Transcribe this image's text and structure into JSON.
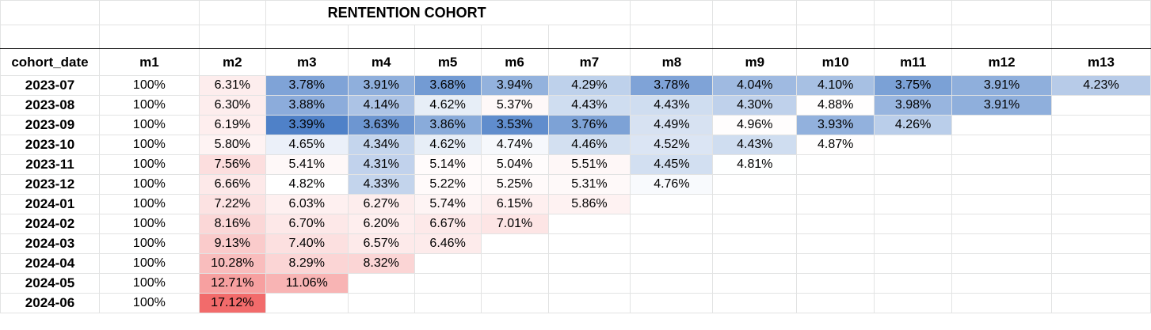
{
  "title": "RENTENTION COHORT",
  "header": {
    "row_label": "cohort_date",
    "columns": [
      "m1",
      "m2",
      "m3",
      "m4",
      "m5",
      "m6",
      "m7",
      "m8",
      "m9",
      "m10",
      "m11",
      "m12",
      "m13"
    ]
  },
  "rows": [
    {
      "date": "2023-07",
      "values": [
        "100%",
        "6.31%",
        "3.78%",
        "3.91%",
        "3.68%",
        "3.94%",
        "4.29%",
        "3.78%",
        "4.04%",
        "4.10%",
        "3.75%",
        "3.91%",
        "4.23%"
      ]
    },
    {
      "date": "2023-08",
      "values": [
        "100%",
        "6.30%",
        "3.88%",
        "4.14%",
        "4.62%",
        "5.37%",
        "4.43%",
        "4.43%",
        "4.30%",
        "4.88%",
        "3.98%",
        "3.91%",
        ""
      ]
    },
    {
      "date": "2023-09",
      "values": [
        "100%",
        "6.19%",
        "3.39%",
        "3.63%",
        "3.86%",
        "3.53%",
        "3.76%",
        "4.49%",
        "4.96%",
        "3.93%",
        "4.26%",
        "",
        ""
      ]
    },
    {
      "date": "2023-10",
      "values": [
        "100%",
        "5.80%",
        "4.65%",
        "4.34%",
        "4.62%",
        "4.74%",
        "4.46%",
        "4.52%",
        "4.43%",
        "4.87%",
        "",
        "",
        ""
      ]
    },
    {
      "date": "2023-11",
      "values": [
        "100%",
        "7.56%",
        "5.41%",
        "4.31%",
        "5.14%",
        "5.04%",
        "5.51%",
        "4.45%",
        "4.81%",
        "",
        "",
        "",
        ""
      ]
    },
    {
      "date": "2023-12",
      "values": [
        "100%",
        "6.66%",
        "4.82%",
        "4.33%",
        "5.22%",
        "5.25%",
        "5.31%",
        "4.76%",
        "",
        "",
        "",
        "",
        ""
      ]
    },
    {
      "date": "2024-01",
      "values": [
        "100%",
        "7.22%",
        "6.03%",
        "6.27%",
        "5.74%",
        "6.15%",
        "5.86%",
        "",
        "",
        "",
        "",
        "",
        ""
      ]
    },
    {
      "date": "2024-02",
      "values": [
        "100%",
        "8.16%",
        "6.70%",
        "6.20%",
        "6.67%",
        "7.01%",
        "",
        "",
        "",
        "",
        "",
        "",
        ""
      ]
    },
    {
      "date": "2024-03",
      "values": [
        "100%",
        "9.13%",
        "7.40%",
        "6.57%",
        "6.46%",
        "",
        "",
        "",
        "",
        "",
        "",
        "",
        ""
      ]
    },
    {
      "date": "2024-04",
      "values": [
        "100%",
        "10.28%",
        "8.29%",
        "8.32%",
        "",
        "",
        "",
        "",
        "",
        "",
        "",
        "",
        ""
      ]
    },
    {
      "date": "2024-05",
      "values": [
        "100%",
        "12.71%",
        "11.06%",
        "",
        "",
        "",
        "",
        "",
        "",
        "",
        "",
        "",
        ""
      ]
    },
    {
      "date": "2024-06",
      "values": [
        "100%",
        "17.12%",
        "",
        "",
        "",
        "",
        "",
        "",
        "",
        "",
        "",
        "",
        ""
      ]
    }
  ],
  "colors": {
    "low": "#4f81c8",
    "mid": "#ffffff",
    "high": "#f26b6b",
    "grid": "#e2e3e3",
    "header_rule": "#000000"
  }
}
